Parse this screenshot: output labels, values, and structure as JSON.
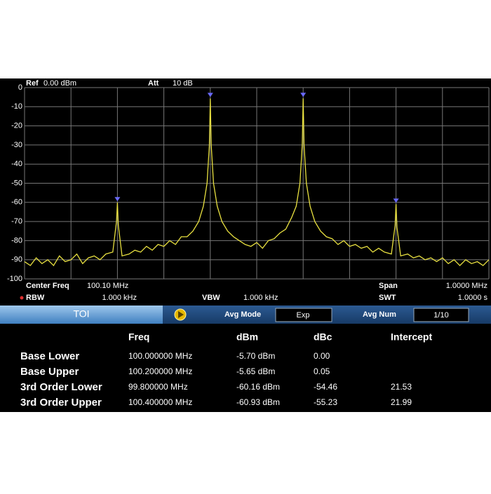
{
  "chart_data": {
    "type": "line",
    "x": [
      99.6,
      99.6125,
      99.625,
      99.6375,
      99.65,
      99.6625,
      99.675,
      99.6875,
      99.7,
      99.7125,
      99.725,
      99.7375,
      99.75,
      99.7625,
      99.775,
      99.79,
      99.798,
      99.8,
      99.802,
      99.81,
      99.825,
      99.8375,
      99.85,
      99.8625,
      99.875,
      99.8875,
      99.9,
      99.9125,
      99.925,
      99.9375,
      99.95,
      99.9625,
      99.975,
      99.985,
      99.993,
      99.998,
      100.0,
      100.002,
      100.007,
      100.015,
      100.025,
      100.0375,
      100.05,
      100.0625,
      100.075,
      100.0875,
      100.1,
      100.1125,
      100.125,
      100.1375,
      100.15,
      100.1625,
      100.175,
      100.185,
      100.193,
      100.198,
      100.2,
      100.202,
      100.207,
      100.215,
      100.225,
      100.2375,
      100.25,
      100.2625,
      100.275,
      100.2875,
      100.3,
      100.3125,
      100.325,
      100.3375,
      100.35,
      100.3625,
      100.375,
      100.39,
      100.398,
      100.4,
      100.402,
      100.41,
      100.425,
      100.4375,
      100.45,
      100.4625,
      100.475,
      100.4875,
      100.5,
      100.5125,
      100.525,
      100.5375,
      100.55,
      100.5625,
      100.575,
      100.5875,
      100.6
    ],
    "series": [
      {
        "color": "#e8e040",
        "values": [
          -91,
          -93,
          -89,
          -92,
          -90,
          -93,
          -88,
          -91,
          -90,
          -87,
          -92,
          -89,
          -88,
          -90,
          -87,
          -86,
          -70,
          -60.16,
          -72,
          -88,
          -87,
          -85,
          -86,
          -83,
          -85,
          -82,
          -83,
          -80,
          -82,
          -78,
          -78,
          -75,
          -70,
          -62,
          -50,
          -30,
          -5.7,
          -30,
          -50,
          -62,
          -70,
          -75,
          -78,
          -80,
          -82,
          -83,
          -81,
          -84,
          -80,
          -79,
          -76,
          -74,
          -68,
          -62,
          -50,
          -30,
          -5.65,
          -30,
          -50,
          -62,
          -70,
          -75,
          -78,
          -79,
          -82,
          -80,
          -83,
          -82,
          -84,
          -83,
          -86,
          -84,
          -86,
          -87,
          -72,
          -60.93,
          -73,
          -88,
          -87,
          -89,
          -88,
          -90,
          -89,
          -91,
          -89,
          -92,
          -90,
          -93,
          -90,
          -92,
          -91,
          -93,
          -90
        ]
      }
    ],
    "markers": {
      "x": [
        99.8,
        100.0,
        100.2,
        100.4
      ],
      "y": [
        -60.16,
        -5.7,
        -5.65,
        -60.93
      ]
    },
    "xlim": [
      99.6,
      100.6
    ],
    "ylim": [
      -100,
      0
    ],
    "yticks": [
      0,
      -10,
      -20,
      -30,
      -40,
      -50,
      -60,
      -70,
      -80,
      -90,
      -100
    ],
    "grid": true
  },
  "header": {
    "ref_label": "Ref",
    "ref_value": "0.00 dBm",
    "att_label": "Att",
    "att_value": "10 dB"
  },
  "status": {
    "center_label": "Center Freq",
    "center_value": "100.10 MHz",
    "span_label": "Span",
    "span_value": "1.0000 MHz",
    "rbw_label": "RBW",
    "rbw_value": "1.000 kHz",
    "vbw_label": "VBW",
    "vbw_value": "1.000 kHz",
    "swt_label": "SWT",
    "swt_value": "1.0000 s"
  },
  "toi_bar": {
    "title": "TOI",
    "avg_mode_label": "Avg Mode",
    "avg_mode_value": "Exp",
    "avg_num_label": "Avg Num",
    "avg_num_value": "1/10"
  },
  "table": {
    "columns": [
      "Freq",
      "dBm",
      "dBc",
      "Intercept"
    ],
    "rows": [
      [
        "Base Lower",
        "100.000000 MHz",
        "-5.70 dBm",
        "0.00"
      ],
      [
        "Base Upper",
        "100.200000 MHz",
        "-5.65 dBm",
        "0.05"
      ],
      [
        "3rd Order Lower",
        "99.800000 MHz",
        "-60.16 dBm",
        "-54.46",
        "21.53"
      ],
      [
        "3rd Order Upper",
        "100.400000 MHz",
        "-60.93 dBm",
        "-55.23",
        "21.99"
      ]
    ]
  }
}
